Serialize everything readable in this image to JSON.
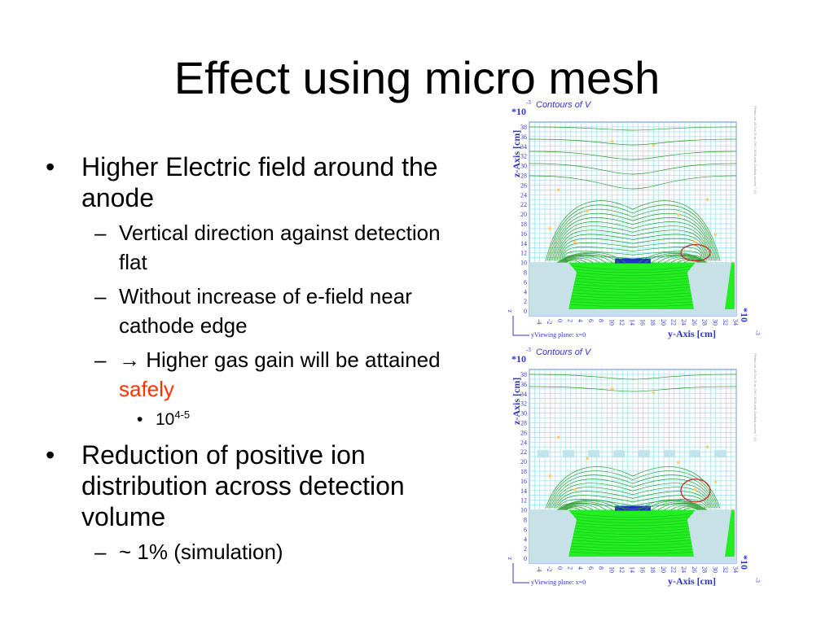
{
  "slide": {
    "title": "Effect using micro mesh",
    "bullets": [
      {
        "text": "Higher Electric field around the anode",
        "sub": [
          "Vertical direction against detection flat",
          "Without increase of e-field near cathode edge",
          "Higher gas gain will  be attained ",
          "safely",
          "10",
          "4-5"
        ]
      },
      {
        "text": "Reduction of positive ion distribution across detection volume",
        "sub": [
          "~ 1% (simulation)"
        ]
      }
    ],
    "bullet_mark": "•",
    "dash_mark": "–",
    "arrow_mark": "→"
  },
  "plots": [
    {
      "header": "Contours of V",
      "exp_left": "*10",
      "exp_left_power": "-3",
      "z_axis_label": "z-Axis [cm]",
      "y_axis_label": "y-Axis [cm]",
      "exp_right": "*10",
      "exp_right_power": "-3",
      "view": "yViewing plane: x=0",
      "axis_tag_z": "z",
      "z_ticks": [
        "0",
        "2",
        "4",
        "6",
        "8",
        "10",
        "12",
        "14",
        "16",
        "18",
        "20",
        "22",
        "24",
        "26",
        "28",
        "30",
        "32",
        "34",
        "36",
        "38"
      ],
      "y_ticks": [
        "-4",
        "-2",
        "0",
        "2",
        "4",
        "6",
        "8",
        "10",
        "12",
        "14",
        "16",
        "18",
        "20",
        "22",
        "24",
        "26",
        "28",
        "30",
        "32",
        "34"
      ],
      "side_note": "Plotted on 18-Oct-21 on OK/7-8/08 with Garfield version 7.10",
      "has_mesh": false
    },
    {
      "header": "Contours of V",
      "exp_left": "*10",
      "exp_left_power": "-3",
      "z_axis_label": "z-Axis [cm]",
      "y_axis_label": "y-Axis [cm]",
      "exp_right": "*10",
      "exp_right_power": "-3",
      "view": "yViewing plane: x=0",
      "axis_tag_z": "z",
      "z_ticks": [
        "0",
        "2",
        "4",
        "6",
        "8",
        "10",
        "12",
        "14",
        "16",
        "18",
        "20",
        "22",
        "24",
        "26",
        "28",
        "30",
        "32",
        "34",
        "36",
        "38"
      ],
      "y_ticks": [
        "-4",
        "-2",
        "0",
        "2",
        "4",
        "6",
        "8",
        "10",
        "12",
        "14",
        "16",
        "18",
        "20",
        "22",
        "24",
        "26",
        "28",
        "30",
        "32",
        "34"
      ],
      "side_note": "Plotted on 18-Oct-21 on OK/7-8/08 with Garfield version 7.10",
      "has_mesh": true
    }
  ],
  "colors": {
    "axis_blue": "#3333cc",
    "grid": "#88ddee",
    "contour": "#2a9a2a",
    "field_green": "#22ee22",
    "cathode": "#c6e2e6",
    "anode": "#2233bb",
    "mesh": "#bfe4ee",
    "highlight": "#cc2222",
    "orange": "#ffcc66"
  }
}
